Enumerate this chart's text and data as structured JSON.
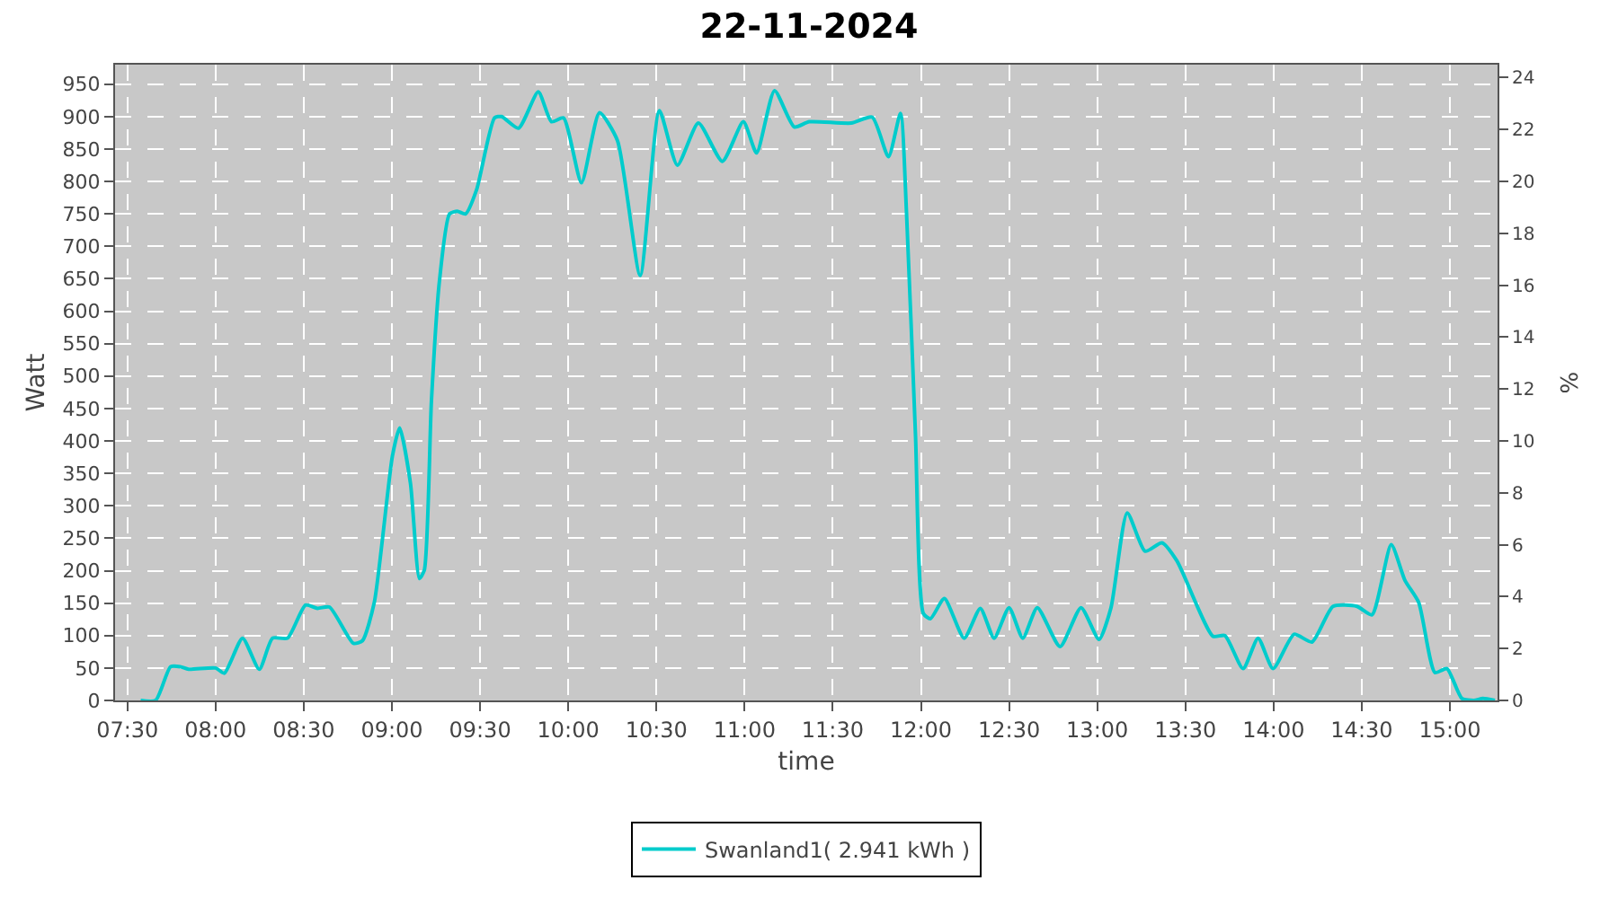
{
  "chart_data": {
    "type": "line",
    "title": "22-11-2024",
    "xlabel": "time",
    "ylabel": "Watt",
    "y2label": "%",
    "x": [
      7.575,
      7.66,
      7.745,
      7.8,
      7.847,
      8.0,
      8.05,
      8.153,
      8.248,
      8.323,
      8.408,
      8.51,
      8.578,
      8.646,
      8.782,
      8.833,
      8.9,
      9.003,
      9.044,
      9.105,
      9.156,
      9.184,
      9.224,
      9.269,
      9.327,
      9.371,
      9.418,
      9.48,
      9.582,
      9.622,
      9.718,
      9.83,
      9.905,
      9.973,
      10.075,
      10.177,
      10.279,
      10.408,
      10.517,
      10.619,
      10.738,
      10.874,
      10.993,
      11.068,
      11.17,
      11.282,
      11.367,
      11.605,
      11.724,
      11.816,
      11.884,
      11.918,
      11.969,
      12.014,
      12.054,
      12.133,
      12.245,
      12.337,
      12.415,
      12.5,
      12.578,
      12.66,
      12.789,
      12.908,
      13.01,
      13.078,
      13.17,
      13.272,
      13.367,
      13.452,
      13.656,
      13.724,
      13.827,
      13.912,
      13.997,
      14.116,
      14.218,
      14.337,
      14.473,
      14.558,
      14.667,
      14.745,
      14.823,
      14.915,
      14.983,
      15.068,
      15.136,
      15.187,
      15.255
    ],
    "series": [
      {
        "name": "Swanland1( 2.941 kWh )",
        "color": "#00cccc",
        "values": [
          0,
          0,
          52,
          52,
          48,
          50,
          42,
          96,
          48,
          96,
          96,
          147,
          142,
          144,
          88,
          92,
          151,
          377,
          420,
          335,
          188,
          201,
          461,
          645,
          750,
          754,
          750,
          787,
          898,
          900,
          882,
          938,
          892,
          898,
          798,
          906,
          863,
          655,
          909,
          825,
          890,
          831,
          892,
          844,
          940,
          884,
          892,
          890,
          899,
          838,
          905,
          754,
          410,
          134,
          126,
          157,
          96,
          142,
          96,
          143,
          96,
          143,
          83,
          143,
          94,
          143,
          289,
          230,
          243,
          215,
          99,
          100,
          49,
          96,
          49,
          102,
          90,
          145,
          145,
          132,
          240,
          185,
          151,
          43,
          49,
          3,
          0,
          3,
          0
        ]
      }
    ],
    "xlim": [
      7.43,
      15.27
    ],
    "xticks": [
      {
        "value": 7.5,
        "label": "07:30"
      },
      {
        "value": 8,
        "label": "08:00"
      },
      {
        "value": 8.5,
        "label": "08:30"
      },
      {
        "value": 9,
        "label": "09:00"
      },
      {
        "value": 9.5,
        "label": "09:30"
      },
      {
        "value": 10,
        "label": "10:00"
      },
      {
        "value": 10.5,
        "label": "10:30"
      },
      {
        "value": 11,
        "label": "11:00"
      },
      {
        "value": 11.5,
        "label": "11:30"
      },
      {
        "value": 12,
        "label": "12:00"
      },
      {
        "value": 12.5,
        "label": "12:30"
      },
      {
        "value": 13,
        "label": "13:00"
      },
      {
        "value": 13.5,
        "label": "13:30"
      },
      {
        "value": 14,
        "label": "14:00"
      },
      {
        "value": 14.5,
        "label": "14:30"
      },
      {
        "value": 15,
        "label": "15:00"
      }
    ],
    "ylim": [
      0,
      980
    ],
    "yticks": [
      0,
      50,
      100,
      150,
      200,
      250,
      300,
      350,
      400,
      450,
      500,
      550,
      600,
      650,
      700,
      750,
      800,
      850,
      900,
      950
    ],
    "y2lim": [
      0,
      24.5
    ],
    "y2ticks": [
      0,
      2,
      4,
      6,
      8,
      10,
      12,
      14,
      16,
      18,
      20,
      22,
      24
    ],
    "grid": true,
    "legend": "bottom",
    "marker": "none",
    "line_style": "solid"
  }
}
